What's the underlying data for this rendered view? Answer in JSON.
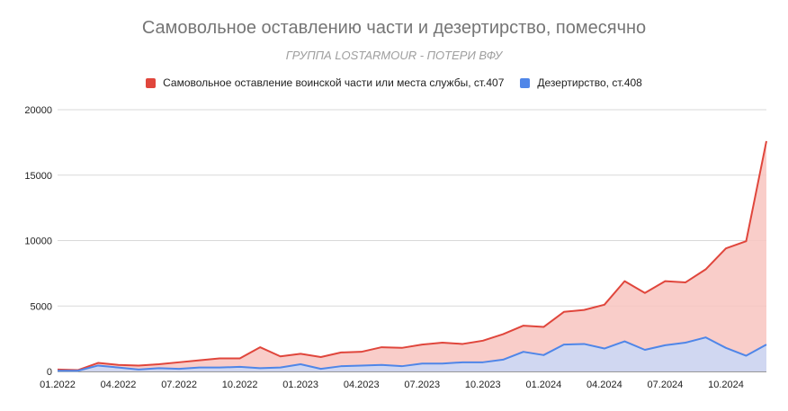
{
  "chart_data": {
    "type": "area",
    "title": "Самовольное оставлению части и дезертирство, помесячно",
    "subtitle": "ГРУППА LOSTARMOUR - ПОТЕРИ ВФУ",
    "xlabel": "",
    "ylabel": "",
    "ylim": [
      0,
      20000
    ],
    "yticks": [
      "0",
      "5000",
      "10000",
      "15000",
      "20000"
    ],
    "x": [
      "01.2022",
      "02.2022",
      "03.2022",
      "04.2022",
      "05.2022",
      "06.2022",
      "07.2022",
      "08.2022",
      "09.2022",
      "10.2022",
      "11.2022",
      "12.2022",
      "01.2023",
      "02.2023",
      "03.2023",
      "04.2023",
      "05.2023",
      "06.2023",
      "07.2023",
      "08.2023",
      "09.2023",
      "10.2023",
      "11.2023",
      "12.2023",
      "01.2024",
      "02.2024",
      "03.2024",
      "04.2024",
      "05.2024",
      "06.2024",
      "07.2024",
      "08.2024",
      "09.2024",
      "10.2024",
      "11.2024",
      "12.2024"
    ],
    "xtick_labels": [
      "01.2022",
      "04.2022",
      "07.2022",
      "10.2022",
      "01.2023",
      "04.2023",
      "07.2023",
      "10.2023",
      "01.2024",
      "04.2024",
      "07.2024",
      "10.2024"
    ],
    "legend_position": "top",
    "grid": true,
    "series": [
      {
        "name": "Самовольное оставление воинской части или места службы, ст.407",
        "color": "#e0463c",
        "fill": "#f8c4bf",
        "values": [
          150,
          100,
          650,
          500,
          450,
          550,
          700,
          850,
          1000,
          1000,
          1850,
          1150,
          1350,
          1100,
          1450,
          1500,
          1850,
          1800,
          2050,
          2200,
          2100,
          2350,
          2850,
          3500,
          3400,
          4550,
          4700,
          5100,
          6900,
          6000,
          6900,
          6800,
          7800,
          9400,
          9950,
          17600
        ]
      },
      {
        "name": "Дезертирство, ст.408",
        "color": "#4f86e8",
        "fill": "#c9d8f8",
        "values": [
          50,
          50,
          450,
          300,
          150,
          250,
          200,
          300,
          300,
          350,
          250,
          300,
          550,
          200,
          400,
          450,
          500,
          400,
          600,
          600,
          700,
          700,
          900,
          1500,
          1250,
          2050,
          2100,
          1750,
          2300,
          1650,
          2000,
          2200,
          2600,
          1800,
          1200,
          2050
        ]
      }
    ]
  }
}
